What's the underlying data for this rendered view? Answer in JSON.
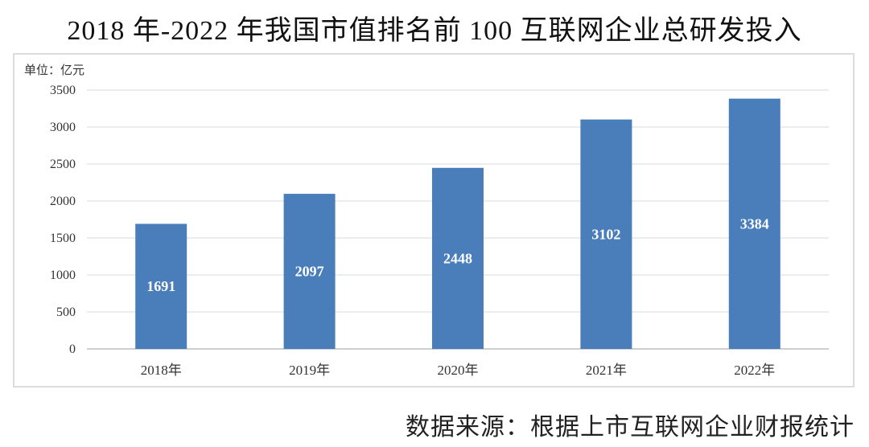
{
  "title": "2018 年-2022 年我国市值排名前 100 互联网企业总研发投入",
  "source": "数据来源：根据上市互联网企业财报统计",
  "chart_data": {
    "type": "bar",
    "title": "2018 年-2022 年我国市值排名前 100 互联网企业总研发投入",
    "unit_label": "单位：亿元",
    "categories": [
      "2018年",
      "2019年",
      "2020年",
      "2021年",
      "2022年"
    ],
    "values": [
      1691,
      2097,
      2448,
      3102,
      3384
    ],
    "ylim": [
      0,
      3500
    ],
    "yticks": [
      0,
      500,
      1000,
      1500,
      2000,
      2500,
      3000,
      3500
    ],
    "bar_color": "#4a7ebb",
    "label_color": "#ffffff",
    "grid": true,
    "legend": "none"
  }
}
